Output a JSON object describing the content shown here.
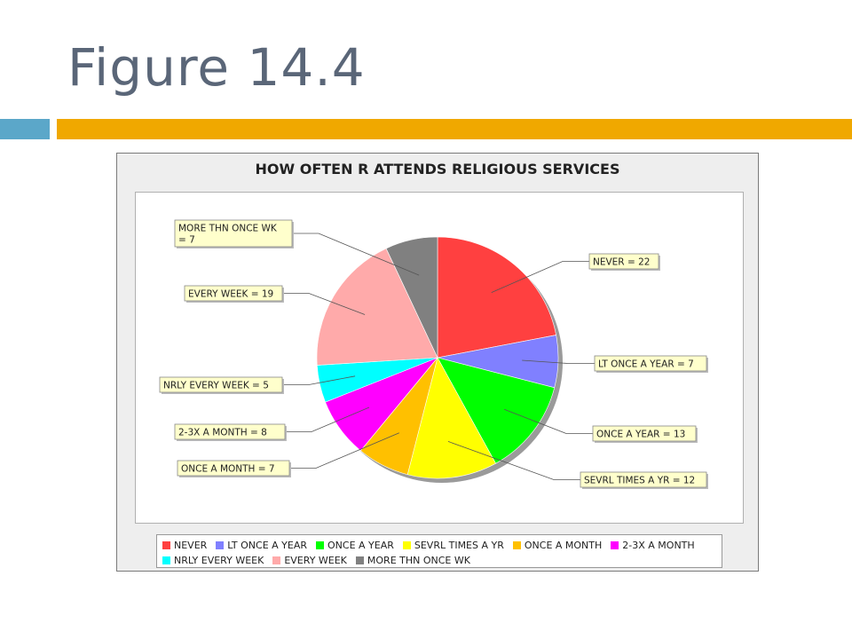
{
  "slide": {
    "title": "Figure 14.4"
  },
  "colors": {
    "title_text": "#5a6678",
    "accent_blue": "#5ba7c9",
    "accent_gold": "#f0a800",
    "label_box_fill": "#ffffcc"
  },
  "chart_data": {
    "type": "pie",
    "title": "HOW OFTEN R ATTENDS RELIGIOUS SERVICES",
    "slices": [
      {
        "category": "NEVER",
        "value": 22,
        "label": "NEVER = 22",
        "color": "#ff4040"
      },
      {
        "category": "LT ONCE A YEAR",
        "value": 7,
        "label": "LT ONCE A YEAR = 7",
        "color": "#8080ff"
      },
      {
        "category": "ONCE A YEAR",
        "value": 13,
        "label": "ONCE A YEAR = 13",
        "color": "#00ff00"
      },
      {
        "category": "SEVRL TIMES A YR",
        "value": 12,
        "label": "SEVRL TIMES A YR = 12",
        "color": "#ffff00"
      },
      {
        "category": "ONCE A MONTH",
        "value": 7,
        "label": "ONCE A MONTH = 7",
        "color": "#ffc000"
      },
      {
        "category": "2-3X A MONTH",
        "value": 8,
        "label": "2-3X A MONTH = 8",
        "color": "#ff00ff"
      },
      {
        "category": "NRLY EVERY WEEK",
        "value": 5,
        "label": "NRLY EVERY WEEK = 5",
        "color": "#00ffff"
      },
      {
        "category": "EVERY WEEK",
        "value": 19,
        "label": "EVERY WEEK = 19",
        "color": "#ffaaaa"
      },
      {
        "category": "MORE THN ONCE WK",
        "value": 7,
        "label": "MORE THN ONCE WK = 7",
        "color": "#808080"
      }
    ],
    "legend_position": "bottom"
  }
}
